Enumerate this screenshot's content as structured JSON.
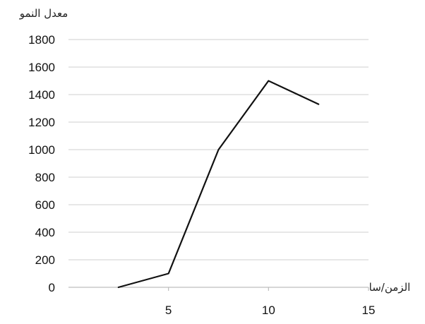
{
  "chart_data": {
    "type": "line",
    "title": "",
    "ylabel": "معدل النمو",
    "xlabel": "الزمن/سا",
    "xlim": [
      0,
      15
    ],
    "ylim": [
      0,
      1800
    ],
    "x_ticks": [
      5,
      10,
      15
    ],
    "y_ticks": [
      0,
      200,
      400,
      600,
      800,
      1000,
      1200,
      1400,
      1600,
      1800
    ],
    "grid": "horizontal",
    "legend": "none",
    "series": [
      {
        "color": "#111111",
        "x": [
          2.5,
          5,
          7.5,
          10,
          12.5
        ],
        "y": [
          0,
          100,
          1000,
          1500,
          1330
        ]
      }
    ]
  }
}
